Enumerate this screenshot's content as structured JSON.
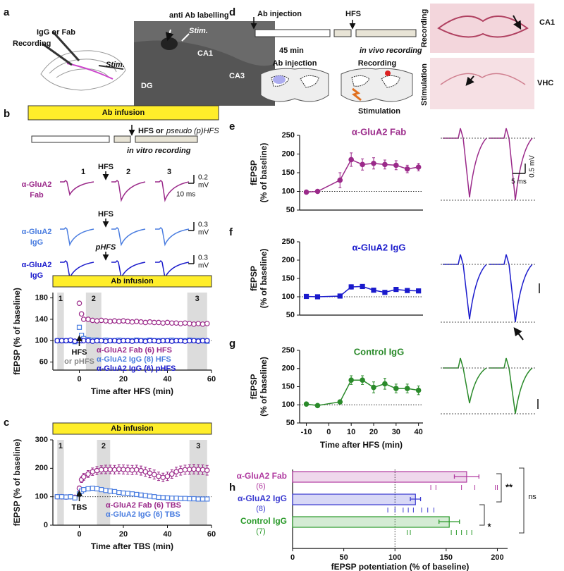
{
  "panel_labels": [
    "a",
    "b",
    "c",
    "d",
    "e",
    "f",
    "g",
    "h"
  ],
  "panel_a": {
    "pipette": "IgG or Fab",
    "recording": "Recording",
    "stim": "Stim.",
    "image_title": "anti Ab labelling",
    "image_stim": "Stim.",
    "regions": [
      "CA1",
      "DG",
      "CA3"
    ]
  },
  "panel_b_protocol": {
    "infusion": "Ab infusion",
    "event": "HFS or",
    "event_alt": "pseudo (p)HFS",
    "recording": "in vitro recording"
  },
  "panel_b_traces": {
    "periods": [
      "1",
      "2",
      "3"
    ],
    "time_scale": "10 ms",
    "rows": [
      {
        "label": [
          "α-GluA2",
          "Fab"
        ],
        "event": "HFS",
        "scale": [
          "0.2",
          "mV"
        ],
        "color": "#9b2a8a"
      },
      {
        "label": [
          "α-GluA2",
          "IgG"
        ],
        "event": "HFS",
        "scale": [
          "0.3",
          "mV"
        ],
        "color": "#4a7de0"
      },
      {
        "label": [
          "α-GluA2",
          "IgG"
        ],
        "event": "pHFS",
        "scale": [
          "0.3",
          "mV"
        ],
        "color": "#1a1acc"
      }
    ]
  },
  "panel_d": {
    "timeline": {
      "injection": "Ab injection",
      "event": "HFS",
      "delay": "45 min",
      "recording": "in vivo recording"
    },
    "schematic": {
      "injection": "Ab injection",
      "recording": "Recording",
      "stimulation": "Stimulation"
    },
    "histology": [
      {
        "row": "Recording",
        "region": "CA1"
      },
      {
        "row": "Stimulation",
        "region": "VHC"
      }
    ]
  },
  "chart_data": [
    {
      "type": "line",
      "infusion": "Ab infusion",
      "ylabel": [
        "fEPSP (% of baseline)"
      ],
      "xlabel": "Time after HFS (min)",
      "xlim": [
        -12,
        60
      ],
      "ylim": [
        45,
        190
      ],
      "xticks": [
        0,
        20,
        40,
        60
      ],
      "yticks": [
        60,
        100,
        140,
        180
      ],
      "reference_line": 100,
      "connect": false,
      "legend": "lower right",
      "regions": [
        {
          "label": "1",
          "range": [
            -10,
            -7
          ]
        },
        {
          "label": "2",
          "range": [
            3,
            10
          ]
        },
        {
          "label": "3",
          "range": [
            49,
            58
          ]
        }
      ],
      "annotations": [
        "HFS",
        "or pHFS"
      ],
      "x": [
        -10,
        -8,
        -6,
        -4,
        -2,
        0,
        1,
        2,
        4,
        6,
        8,
        10,
        12,
        14,
        16,
        18,
        20,
        22,
        24,
        26,
        28,
        30,
        32,
        34,
        36,
        38,
        40,
        42,
        44,
        46,
        48,
        50,
        52,
        54,
        56,
        58
      ],
      "series": [
        {
          "name": "α-GluA2 Fab (6) HFS",
          "color": "#9b2a8a",
          "marker": "circle",
          "hollow": true,
          "values": [
            100,
            100,
            100,
            100,
            99,
            170,
            150,
            140,
            140,
            138,
            137,
            138,
            137,
            136,
            137,
            136,
            137,
            136,
            135,
            136,
            135,
            134,
            135,
            134,
            134,
            133,
            134,
            133,
            133,
            132,
            133,
            132,
            131,
            132,
            131,
            132
          ]
        },
        {
          "name": "α-GluA2 IgG (8) HFS",
          "color": "#4a7de0",
          "marker": "square",
          "hollow": true,
          "values": [
            100,
            100,
            100,
            100,
            98,
            125,
            110,
            104,
            102,
            101,
            101,
            100,
            101,
            100,
            100,
            101,
            100,
            100,
            100,
            101,
            100,
            100,
            101,
            100,
            100,
            100,
            100,
            101,
            100,
            100,
            100,
            101,
            100,
            100,
            100,
            99
          ]
        },
        {
          "name": "α-GluA2 IgG (6) pHFS",
          "color": "#1a1acc",
          "marker": "circle",
          "hollow": true,
          "values": [
            100,
            100,
            100,
            101,
            99,
            100,
            100,
            100,
            100,
            99,
            100,
            100,
            99,
            100,
            100,
            99,
            100,
            100,
            99,
            100,
            100,
            99,
            100,
            100,
            99,
            100,
            100,
            99,
            100,
            100,
            99,
            100,
            100,
            99,
            100,
            100
          ]
        }
      ]
    },
    {
      "type": "line",
      "infusion": "Ab infusion",
      "ylabel": [
        "fEPSP (% of baseline)"
      ],
      "xlabel": "Time after TBS (min)",
      "xlim": [
        -12,
        60
      ],
      "ylim": [
        0,
        300
      ],
      "xticks": [
        0,
        20,
        40,
        60
      ],
      "yticks": [
        0,
        100,
        200,
        300
      ],
      "reference_line": 100,
      "connect": false,
      "legend": "lower right",
      "regions": [
        {
          "label": "1",
          "range": [
            -10,
            -7
          ]
        },
        {
          "label": "2",
          "range": [
            8,
            14
          ]
        },
        {
          "label": "3",
          "range": [
            50,
            58
          ]
        }
      ],
      "annotations": [
        "TBS"
      ],
      "x": [
        -10,
        -8,
        -6,
        -4,
        -2,
        0,
        1,
        2,
        4,
        6,
        8,
        10,
        12,
        14,
        16,
        18,
        20,
        22,
        24,
        26,
        28,
        30,
        32,
        34,
        36,
        38,
        40,
        42,
        44,
        46,
        48,
        50,
        52,
        54,
        56,
        58
      ],
      "series": [
        {
          "name": "α-GluA2 Fab (6) TBS",
          "color": "#9b2a8a",
          "marker": "circle",
          "hollow": true,
          "values": [
            100,
            100,
            99,
            100,
            98,
            130,
            160,
            170,
            180,
            188,
            192,
            195,
            196,
            196,
            195,
            197,
            196,
            195,
            194,
            195,
            192,
            188,
            183,
            178,
            172,
            168,
            172,
            180,
            188,
            192,
            195,
            196,
            197,
            196,
            195,
            193
          ],
          "errors": [
            4,
            4,
            4,
            4,
            4,
            8,
            10,
            12,
            12,
            13,
            14,
            14,
            15,
            15,
            15,
            16,
            16,
            16,
            16,
            16,
            16,
            16,
            16,
            16,
            15,
            15,
            15,
            15,
            16,
            16,
            16,
            17,
            17,
            17,
            17,
            17
          ]
        },
        {
          "name": "α-GluA2 IgG (6) TBS",
          "color": "#4a7de0",
          "marker": "square",
          "hollow": true,
          "values": [
            100,
            100,
            99,
            100,
            96,
            110,
            120,
            125,
            128,
            130,
            128,
            125,
            122,
            120,
            118,
            115,
            113,
            112,
            110,
            108,
            106,
            104,
            102,
            100,
            98,
            97,
            96,
            95,
            95,
            94,
            94,
            93,
            93,
            92,
            92,
            92
          ],
          "errors": [
            3,
            3,
            3,
            3,
            3,
            6,
            6,
            6,
            6,
            6,
            6,
            6,
            6,
            6,
            5,
            5,
            5,
            5,
            5,
            5,
            5,
            5,
            5,
            5,
            5,
            5,
            4,
            4,
            4,
            4,
            4,
            4,
            4,
            4,
            4,
            4
          ]
        }
      ]
    },
    {
      "type": "line",
      "title": "α-GluA2 Fab",
      "ylabel": [
        "fEPSP",
        "(% of baseline)"
      ],
      "xlim": [
        -13,
        42
      ],
      "ylim": [
        50,
        250
      ],
      "yticks": [
        50,
        100,
        150,
        200,
        250
      ],
      "reference_line": 100,
      "connect": true,
      "trace_scale": [
        "0.5 mV",
        "5 ms"
      ],
      "x": [
        -10,
        -5,
        5,
        10,
        15,
        20,
        25,
        30,
        35,
        40
      ],
      "series": [
        {
          "color": "#9b2a8a",
          "marker": "circle",
          "hollow": false,
          "values": [
            98,
            100,
            130,
            185,
            172,
            175,
            172,
            170,
            160,
            165
          ],
          "errors": [
            3,
            3,
            20,
            18,
            15,
            15,
            12,
            12,
            10,
            10
          ]
        }
      ]
    },
    {
      "type": "line",
      "title": "α-GluA2 IgG",
      "ylabel": [
        "fEPSP",
        "(% of baseline)"
      ],
      "xlim": [
        -13,
        42
      ],
      "ylim": [
        50,
        250
      ],
      "yticks": [
        50,
        100,
        150,
        200,
        250
      ],
      "reference_line": 100,
      "connect": true,
      "x": [
        -10,
        -5,
        5,
        10,
        15,
        20,
        25,
        30,
        35,
        40
      ],
      "series": [
        {
          "color": "#1a1acc",
          "marker": "square",
          "hollow": false,
          "values": [
            101,
            100,
            102,
            127,
            128,
            118,
            112,
            120,
            117,
            116
          ],
          "errors": [
            4,
            4,
            5,
            6,
            5,
            5,
            4,
            5,
            4,
            4
          ]
        }
      ]
    },
    {
      "type": "line",
      "title": "Control IgG",
      "ylabel": [
        "fEPSP",
        "(% of baseline)"
      ],
      "xlabel": "Time after HFS (min)",
      "xlim": [
        -13,
        42
      ],
      "ylim": [
        50,
        250
      ],
      "xticks": [
        -10,
        0,
        10,
        20,
        30,
        40
      ],
      "yticks": [
        50,
        100,
        150,
        200,
        250
      ],
      "reference_line": 100,
      "connect": true,
      "x": [
        -10,
        -5,
        5,
        10,
        15,
        20,
        25,
        30,
        35,
        40
      ],
      "series": [
        {
          "color": "#2a8a2a",
          "marker": "circle",
          "hollow": false,
          "values": [
            102,
            98,
            108,
            168,
            168,
            148,
            158,
            145,
            145,
            140
          ],
          "errors": [
            3,
            3,
            5,
            12,
            12,
            15,
            15,
            12,
            12,
            12
          ]
        }
      ]
    },
    {
      "type": "hbar",
      "categories": [
        "α-GluA2 Fab",
        "α-GluA2 IgG",
        "Control IgG"
      ],
      "counts": [
        "(6)",
        "(8)",
        "(7)"
      ],
      "values": [
        170,
        120,
        153
      ],
      "errors": [
        12,
        5,
        10
      ],
      "points": [
        [
          135,
          140,
          165,
          178,
          198,
          200
        ],
        [
          93,
          100,
          108,
          113,
          118,
          126,
          132,
          138
        ],
        [
          112,
          115,
          155,
          160,
          165,
          170,
          175
        ]
      ],
      "colors": [
        "#b03aa0",
        "#3a3ad0",
        "#2a9a2a"
      ],
      "xlim": [
        0,
        210
      ],
      "xticks": [
        0,
        50,
        100,
        150,
        200
      ],
      "reference_line": 100,
      "significance": [
        "**",
        "*",
        "ns"
      ],
      "xlabel": "fEPSP potentiation (% of baseline)"
    }
  ]
}
